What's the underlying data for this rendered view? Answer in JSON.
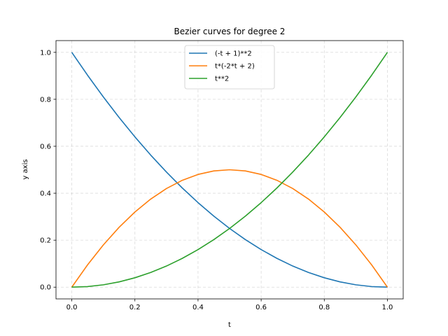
{
  "chart_data": {
    "type": "line",
    "title": "Bezier curves for degree 2",
    "xlabel": "t",
    "ylabel": "y axis",
    "xlim": [
      -0.05,
      1.05
    ],
    "ylim": [
      -0.05,
      1.05
    ],
    "xticks": [
      0.0,
      0.2,
      0.4,
      0.6,
      0.8,
      1.0
    ],
    "yticks": [
      0.0,
      0.2,
      0.4,
      0.6,
      0.8,
      1.0
    ],
    "xtick_labels": [
      "0.0",
      "0.2",
      "0.4",
      "0.6",
      "0.8",
      "1.0"
    ],
    "ytick_labels": [
      "0.0",
      "0.2",
      "0.4",
      "0.6",
      "0.8",
      "1.0"
    ],
    "grid": true,
    "legend_position": "top-center",
    "x": [
      0.0,
      0.05,
      0.1,
      0.15,
      0.2,
      0.25,
      0.3,
      0.35,
      0.4,
      0.45,
      0.5,
      0.55,
      0.6,
      0.65,
      0.7,
      0.75,
      0.8,
      0.85,
      0.9,
      0.95,
      1.0
    ],
    "series": [
      {
        "name": "(-t + 1)**2",
        "color": "#1f77b4",
        "values": [
          1.0,
          0.9025,
          0.81,
          0.7225,
          0.64,
          0.5625,
          0.49,
          0.4225,
          0.36,
          0.3025,
          0.25,
          0.2025,
          0.16,
          0.1225,
          0.09,
          0.0625,
          0.04,
          0.0225,
          0.01,
          0.0025,
          0.0
        ]
      },
      {
        "name": "t*(-2*t + 2)",
        "color": "#ff7f0e",
        "values": [
          0.0,
          0.095,
          0.18,
          0.255,
          0.32,
          0.375,
          0.42,
          0.455,
          0.48,
          0.495,
          0.5,
          0.495,
          0.48,
          0.455,
          0.42,
          0.375,
          0.32,
          0.255,
          0.18,
          0.095,
          0.0
        ]
      },
      {
        "name": "t**2",
        "color": "#2ca02c",
        "values": [
          0.0,
          0.0025,
          0.01,
          0.0225,
          0.04,
          0.0625,
          0.09,
          0.1225,
          0.16,
          0.2025,
          0.25,
          0.3025,
          0.36,
          0.4225,
          0.49,
          0.5625,
          0.64,
          0.7225,
          0.81,
          0.9025,
          1.0
        ]
      }
    ]
  }
}
